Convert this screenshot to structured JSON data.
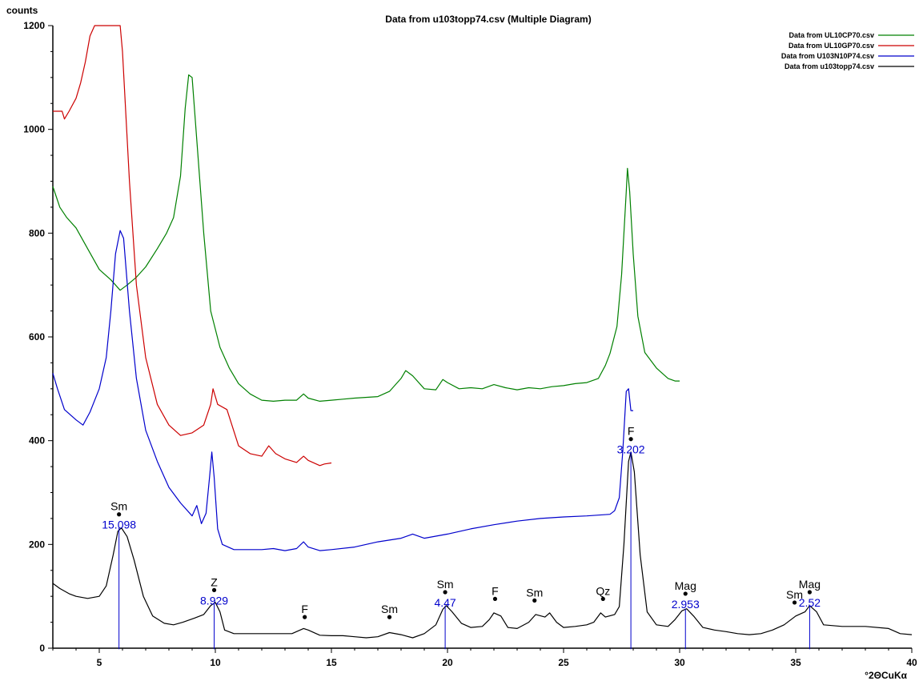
{
  "chart_data": {
    "type": "line",
    "title": "Data from u103topp74.csv (Multiple Diagram)",
    "xlabel": "°2ΘCuKα",
    "ylabel": "counts",
    "xlim": [
      3,
      40
    ],
    "ylim": [
      0,
      1200
    ],
    "x_ticks": [
      5,
      10,
      15,
      20,
      25,
      30,
      35,
      40
    ],
    "y_ticks": [
      0,
      200,
      400,
      600,
      800,
      1000,
      1200
    ],
    "legend_position": "top-right",
    "grid": false,
    "series": [
      {
        "name": "Data from UL10CP70.csv",
        "color": "#008000",
        "points": [
          [
            3,
            890
          ],
          [
            3.3,
            850
          ],
          [
            3.6,
            830
          ],
          [
            4,
            810
          ],
          [
            4.5,
            770
          ],
          [
            5,
            730
          ],
          [
            5.5,
            710
          ],
          [
            5.9,
            690
          ],
          [
            6.2,
            700
          ],
          [
            6.6,
            715
          ],
          [
            7,
            735
          ],
          [
            7.5,
            770
          ],
          [
            7.9,
            800
          ],
          [
            8.2,
            830
          ],
          [
            8.5,
            910
          ],
          [
            8.7,
            1040
          ],
          [
            8.85,
            1105
          ],
          [
            9,
            1100
          ],
          [
            9.2,
            980
          ],
          [
            9.5,
            800
          ],
          [
            9.8,
            650
          ],
          [
            10.2,
            580
          ],
          [
            10.6,
            540
          ],
          [
            11,
            510
          ],
          [
            11.5,
            490
          ],
          [
            12,
            478
          ],
          [
            12.5,
            476
          ],
          [
            13,
            478
          ],
          [
            13.5,
            478
          ],
          [
            13.8,
            490
          ],
          [
            14,
            482
          ],
          [
            14.5,
            476
          ],
          [
            15,
            478
          ],
          [
            15.5,
            480
          ],
          [
            16,
            482
          ],
          [
            17,
            485
          ],
          [
            17.5,
            495
          ],
          [
            18,
            520
          ],
          [
            18.2,
            535
          ],
          [
            18.5,
            525
          ],
          [
            19,
            500
          ],
          [
            19.5,
            498
          ],
          [
            19.8,
            518
          ],
          [
            20,
            512
          ],
          [
            20.5,
            500
          ],
          [
            21,
            502
          ],
          [
            21.5,
            500
          ],
          [
            22,
            508
          ],
          [
            22.5,
            502
          ],
          [
            23,
            498
          ],
          [
            23.5,
            502
          ],
          [
            24,
            500
          ],
          [
            24.5,
            504
          ],
          [
            25,
            506
          ],
          [
            25.5,
            510
          ],
          [
            26,
            512
          ],
          [
            26.5,
            520
          ],
          [
            26.8,
            545
          ],
          [
            27,
            568
          ],
          [
            27.3,
            620
          ],
          [
            27.5,
            720
          ],
          [
            27.7,
            880
          ],
          [
            27.75,
            925
          ],
          [
            27.85,
            880
          ],
          [
            28,
            760
          ],
          [
            28.2,
            640
          ],
          [
            28.5,
            570
          ],
          [
            29,
            540
          ],
          [
            29.5,
            520
          ],
          [
            29.8,
            515
          ],
          [
            30,
            515
          ]
        ]
      },
      {
        "name": "Data from UL10GP70.csv",
        "color": "#cc0000",
        "points": [
          [
            3,
            1035
          ],
          [
            3.4,
            1035
          ],
          [
            3.5,
            1020
          ],
          [
            3.7,
            1035
          ],
          [
            4,
            1060
          ],
          [
            4.2,
            1090
          ],
          [
            4.4,
            1130
          ],
          [
            4.6,
            1180
          ],
          [
            4.8,
            1200
          ],
          [
            5.9,
            1200
          ],
          [
            6,
            1150
          ],
          [
            6.3,
            900
          ],
          [
            6.6,
            700
          ],
          [
            7,
            560
          ],
          [
            7.5,
            470
          ],
          [
            8,
            430
          ],
          [
            8.5,
            410
          ],
          [
            9,
            415
          ],
          [
            9.5,
            430
          ],
          [
            9.8,
            470
          ],
          [
            9.9,
            500
          ],
          [
            10.1,
            470
          ],
          [
            10.5,
            460
          ],
          [
            11,
            390
          ],
          [
            11.5,
            375
          ],
          [
            12,
            370
          ],
          [
            12.3,
            390
          ],
          [
            12.6,
            375
          ],
          [
            13,
            365
          ],
          [
            13.5,
            358
          ],
          [
            13.8,
            370
          ],
          [
            14,
            362
          ],
          [
            14.5,
            352
          ],
          [
            14.7,
            355
          ],
          [
            15,
            357
          ]
        ]
      },
      {
        "name": "Data from U103N10P74.csv",
        "color": "#0000cc",
        "points": [
          [
            3,
            530
          ],
          [
            3.2,
            500
          ],
          [
            3.5,
            460
          ],
          [
            4,
            440
          ],
          [
            4.3,
            430
          ],
          [
            4.6,
            455
          ],
          [
            5,
            500
          ],
          [
            5.3,
            560
          ],
          [
            5.5,
            650
          ],
          [
            5.7,
            760
          ],
          [
            5.9,
            805
          ],
          [
            6.05,
            790
          ],
          [
            6.3,
            650
          ],
          [
            6.6,
            520
          ],
          [
            7,
            420
          ],
          [
            7.5,
            360
          ],
          [
            8,
            310
          ],
          [
            8.5,
            280
          ],
          [
            9,
            255
          ],
          [
            9.2,
            275
          ],
          [
            9.4,
            240
          ],
          [
            9.6,
            260
          ],
          [
            9.75,
            330
          ],
          [
            9.85,
            378
          ],
          [
            9.95,
            330
          ],
          [
            10.1,
            230
          ],
          [
            10.3,
            200
          ],
          [
            10.8,
            190
          ],
          [
            11.5,
            190
          ],
          [
            12,
            190
          ],
          [
            12.5,
            192
          ],
          [
            13,
            188
          ],
          [
            13.5,
            192
          ],
          [
            13.8,
            205
          ],
          [
            14,
            195
          ],
          [
            14.5,
            188
          ],
          [
            15,
            190
          ],
          [
            16,
            195
          ],
          [
            17,
            205
          ],
          [
            18,
            212
          ],
          [
            18.5,
            220
          ],
          [
            19,
            212
          ],
          [
            20,
            220
          ],
          [
            21,
            230
          ],
          [
            22,
            238
          ],
          [
            23,
            245
          ],
          [
            24,
            250
          ],
          [
            25,
            253
          ],
          [
            26,
            255
          ],
          [
            27,
            258
          ],
          [
            27.2,
            265
          ],
          [
            27.4,
            290
          ],
          [
            27.55,
            380
          ],
          [
            27.7,
            495
          ],
          [
            27.8,
            500
          ],
          [
            27.9,
            458
          ],
          [
            28,
            458
          ]
        ]
      },
      {
        "name": "Data from u103topp74.csv",
        "color": "#000000",
        "points": [
          [
            3,
            125
          ],
          [
            3.3,
            115
          ],
          [
            3.7,
            105
          ],
          [
            4,
            100
          ],
          [
            4.5,
            96
          ],
          [
            5,
            100
          ],
          [
            5.3,
            120
          ],
          [
            5.6,
            180
          ],
          [
            5.8,
            225
          ],
          [
            5.95,
            232
          ],
          [
            6.2,
            215
          ],
          [
            6.5,
            170
          ],
          [
            6.9,
            100
          ],
          [
            7.3,
            62
          ],
          [
            7.8,
            48
          ],
          [
            8.2,
            45
          ],
          [
            8.6,
            50
          ],
          [
            9.1,
            58
          ],
          [
            9.5,
            65
          ],
          [
            9.8,
            82
          ],
          [
            10,
            88
          ],
          [
            10.2,
            70
          ],
          [
            10.4,
            35
          ],
          [
            10.8,
            28
          ],
          [
            11.5,
            28
          ],
          [
            12.5,
            28
          ],
          [
            13.3,
            28
          ],
          [
            13.8,
            38
          ],
          [
            14,
            35
          ],
          [
            14.5,
            25
          ],
          [
            15,
            24
          ],
          [
            15.5,
            24
          ],
          [
            16,
            22
          ],
          [
            16.5,
            20
          ],
          [
            17,
            22
          ],
          [
            17.5,
            30
          ],
          [
            18,
            26
          ],
          [
            18.5,
            20
          ],
          [
            19,
            28
          ],
          [
            19.5,
            45
          ],
          [
            19.8,
            75
          ],
          [
            19.95,
            82
          ],
          [
            20.2,
            70
          ],
          [
            20.6,
            48
          ],
          [
            21,
            40
          ],
          [
            21.5,
            42
          ],
          [
            21.8,
            55
          ],
          [
            22,
            68
          ],
          [
            22.3,
            62
          ],
          [
            22.6,
            40
          ],
          [
            23,
            38
          ],
          [
            23.5,
            50
          ],
          [
            23.8,
            65
          ],
          [
            24.2,
            60
          ],
          [
            24.4,
            68
          ],
          [
            24.7,
            50
          ],
          [
            25,
            40
          ],
          [
            25.5,
            42
          ],
          [
            26,
            45
          ],
          [
            26.3,
            50
          ],
          [
            26.6,
            68
          ],
          [
            26.8,
            60
          ],
          [
            27.2,
            65
          ],
          [
            27.4,
            80
          ],
          [
            27.6,
            200
          ],
          [
            27.8,
            360
          ],
          [
            27.9,
            378
          ],
          [
            28.05,
            340
          ],
          [
            28.3,
            180
          ],
          [
            28.6,
            70
          ],
          [
            29,
            45
          ],
          [
            29.5,
            42
          ],
          [
            29.8,
            55
          ],
          [
            30.1,
            72
          ],
          [
            30.3,
            76
          ],
          [
            30.6,
            62
          ],
          [
            31,
            40
          ],
          [
            31.5,
            35
          ],
          [
            32,
            32
          ],
          [
            32.5,
            28
          ],
          [
            33,
            26
          ],
          [
            33.5,
            28
          ],
          [
            34,
            35
          ],
          [
            34.5,
            45
          ],
          [
            35,
            62
          ],
          [
            35.4,
            70
          ],
          [
            35.6,
            82
          ],
          [
            35.9,
            70
          ],
          [
            36.2,
            45
          ],
          [
            37,
            42
          ],
          [
            38,
            42
          ],
          [
            39,
            38
          ],
          [
            39.5,
            28
          ],
          [
            40,
            26
          ]
        ]
      }
    ],
    "peaks": [
      {
        "x": 5.85,
        "label": "Sm",
        "d": "15.098",
        "dot_y": 258,
        "line_top": 232
      },
      {
        "x": 9.95,
        "label": "Z",
        "d": "8.929",
        "dot_y": 112,
        "line_top": 88
      },
      {
        "x": 13.85,
        "label": "F",
        "d": "",
        "dot_y": 60
      },
      {
        "x": 17.5,
        "label": "Sm",
        "d": "",
        "dot_y": 60
      },
      {
        "x": 19.9,
        "label": "Sm",
        "d": "4.47",
        "dot_y": 108,
        "line_top": 82
      },
      {
        "x": 22.05,
        "label": "F",
        "d": "",
        "dot_y": 95
      },
      {
        "x": 23.75,
        "label": "Sm",
        "d": "",
        "dot_y": 92
      },
      {
        "x": 26.7,
        "label": "Qz",
        "d": "",
        "dot_y": 95
      },
      {
        "x": 27.9,
        "label": "F",
        "d": "3.202",
        "dot_y": 403,
        "line_top": 378
      },
      {
        "x": 30.25,
        "label": "Mag",
        "d": "2.953",
        "dot_y": 105,
        "line_top": 76
      },
      {
        "x": 34.95,
        "label": "Sm",
        "d": "",
        "dot_y": 88
      },
      {
        "x": 35.6,
        "label": "Mag",
        "d": "2.52",
        "dot_y": 108,
        "line_top": 82
      }
    ]
  }
}
